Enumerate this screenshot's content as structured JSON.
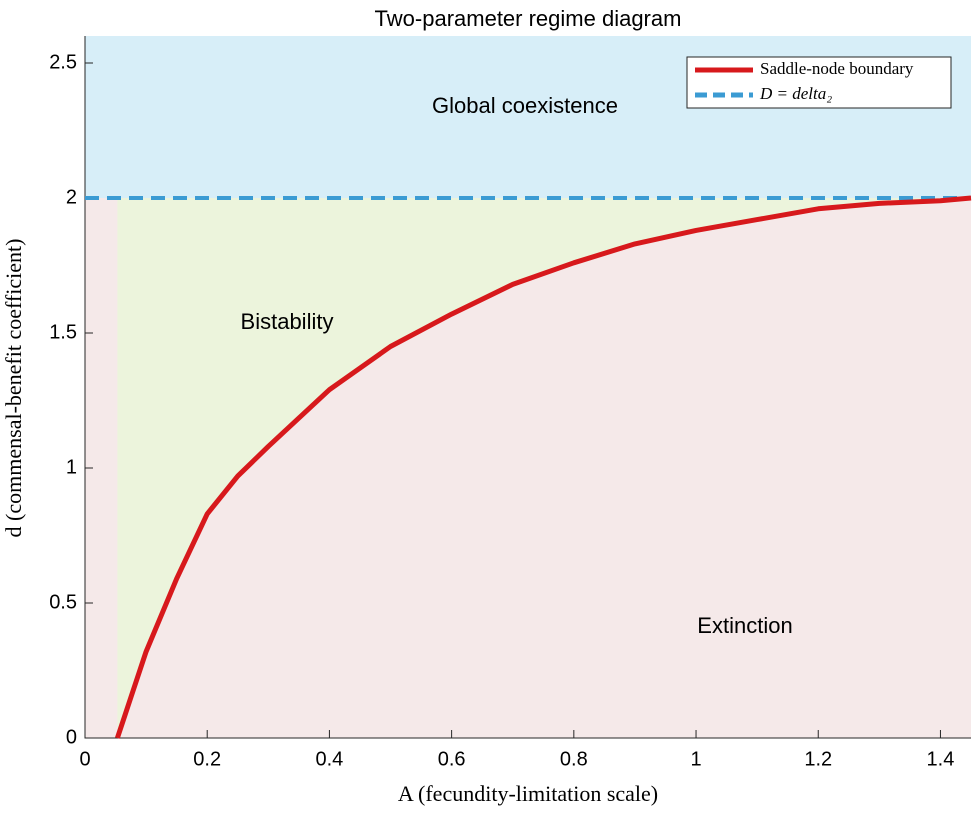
{
  "chart_data": {
    "type": "line",
    "title": "Two-parameter regime diagram",
    "x_label": "A (fecundity-limitation scale)",
    "y_label": "d (commensal-benefit coefficient)",
    "x": [
      0.053,
      0.075,
      0.1,
      0.15,
      0.2,
      0.25,
      0.3,
      0.4,
      0.5,
      0.6,
      0.7,
      0.8,
      0.9,
      1.0,
      1.1,
      1.2,
      1.3,
      1.4,
      1.45
    ],
    "series": [
      {
        "name": "Saddle-node boundary",
        "color": "#d7191c",
        "values": [
          0,
          0.15,
          0.32,
          0.59,
          0.83,
          0.97,
          1.08,
          1.29,
          1.45,
          1.57,
          1.68,
          1.76,
          1.83,
          1.88,
          1.92,
          1.96,
          1.98,
          1.99,
          2.0
        ]
      }
    ],
    "hlines": [
      {
        "name": "D = delta₂",
        "value": 2,
        "color": "#3b9bd3"
      }
    ],
    "regions": [
      {
        "label": "Global coexistence",
        "color": "#d7eef8"
      },
      {
        "label": "Bistability",
        "color": "#ecf4dc"
      },
      {
        "label": "Extinction",
        "color": "#f5e9e9"
      }
    ],
    "xlim": [
      0,
      1.45
    ],
    "ylim": [
      0,
      2.6
    ],
    "xticks": [
      0,
      0.2,
      0.4,
      0.6,
      0.8,
      1,
      1.2,
      1.4
    ],
    "yticks": [
      0,
      0.5,
      1,
      1.5,
      2,
      2.5
    ],
    "legend": "top-right"
  }
}
